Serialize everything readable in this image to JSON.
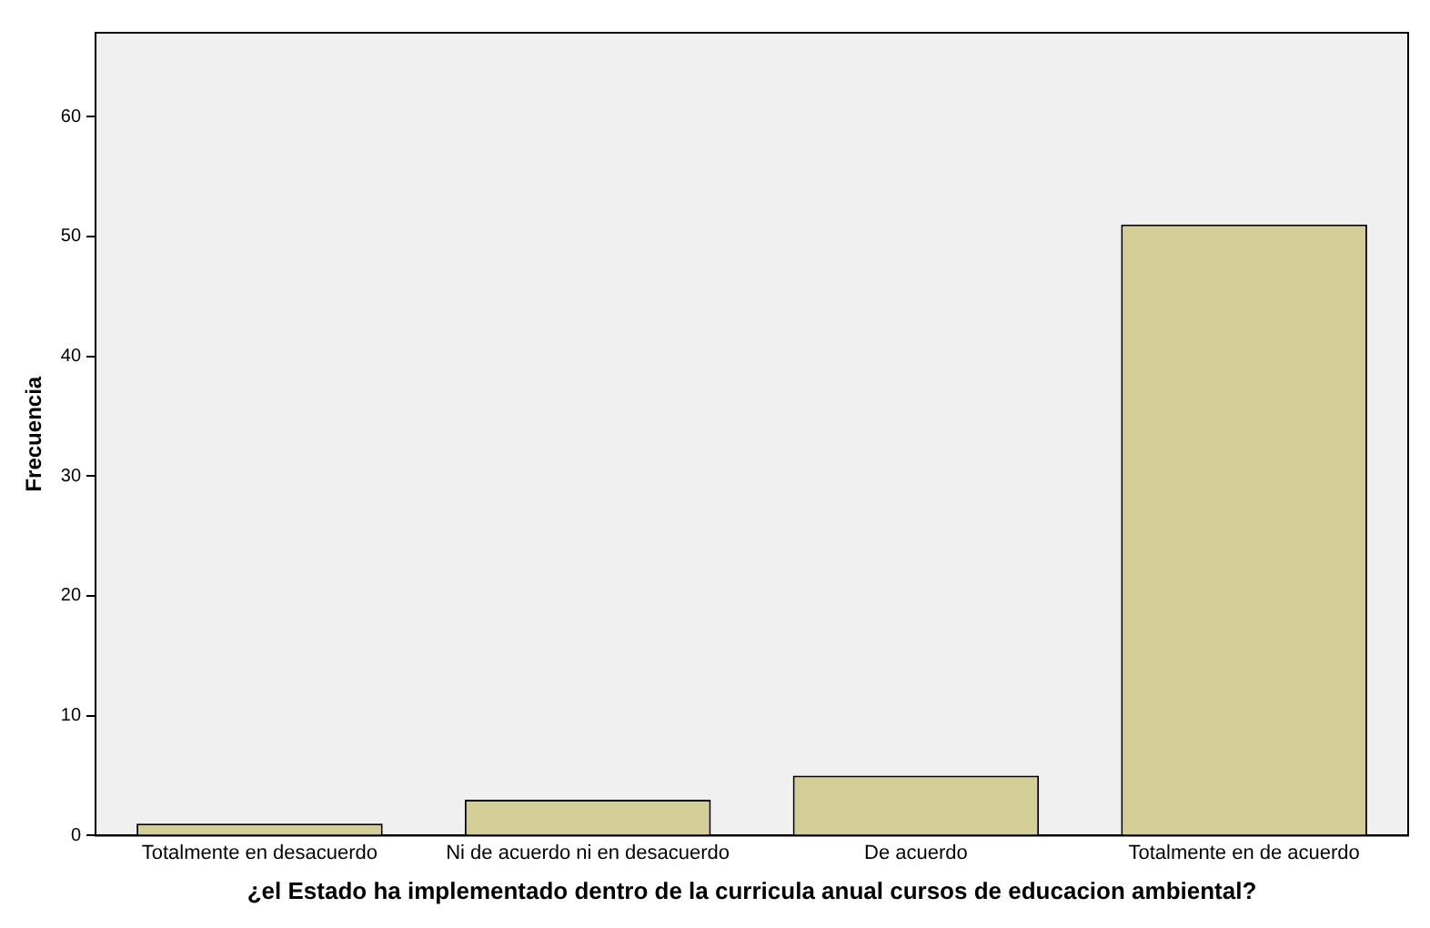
{
  "chart_data": {
    "type": "bar",
    "xlabel": "¿el Estado ha implementado dentro de la curricula anual cursos de educacion ambiental?",
    "ylabel": "Frecuencia",
    "categories": [
      "Totalmente en desacuerdo",
      "Ni de acuerdo ni en desacuerdo",
      "De acuerdo",
      "Totalmente en de acuerdo"
    ],
    "values": [
      1,
      3,
      5,
      51
    ],
    "color": "#d3ce97",
    "ylim": [
      0,
      67
    ],
    "yticks": [
      0,
      10,
      20,
      30,
      40,
      50,
      60
    ],
    "grid": false,
    "legend": false
  }
}
